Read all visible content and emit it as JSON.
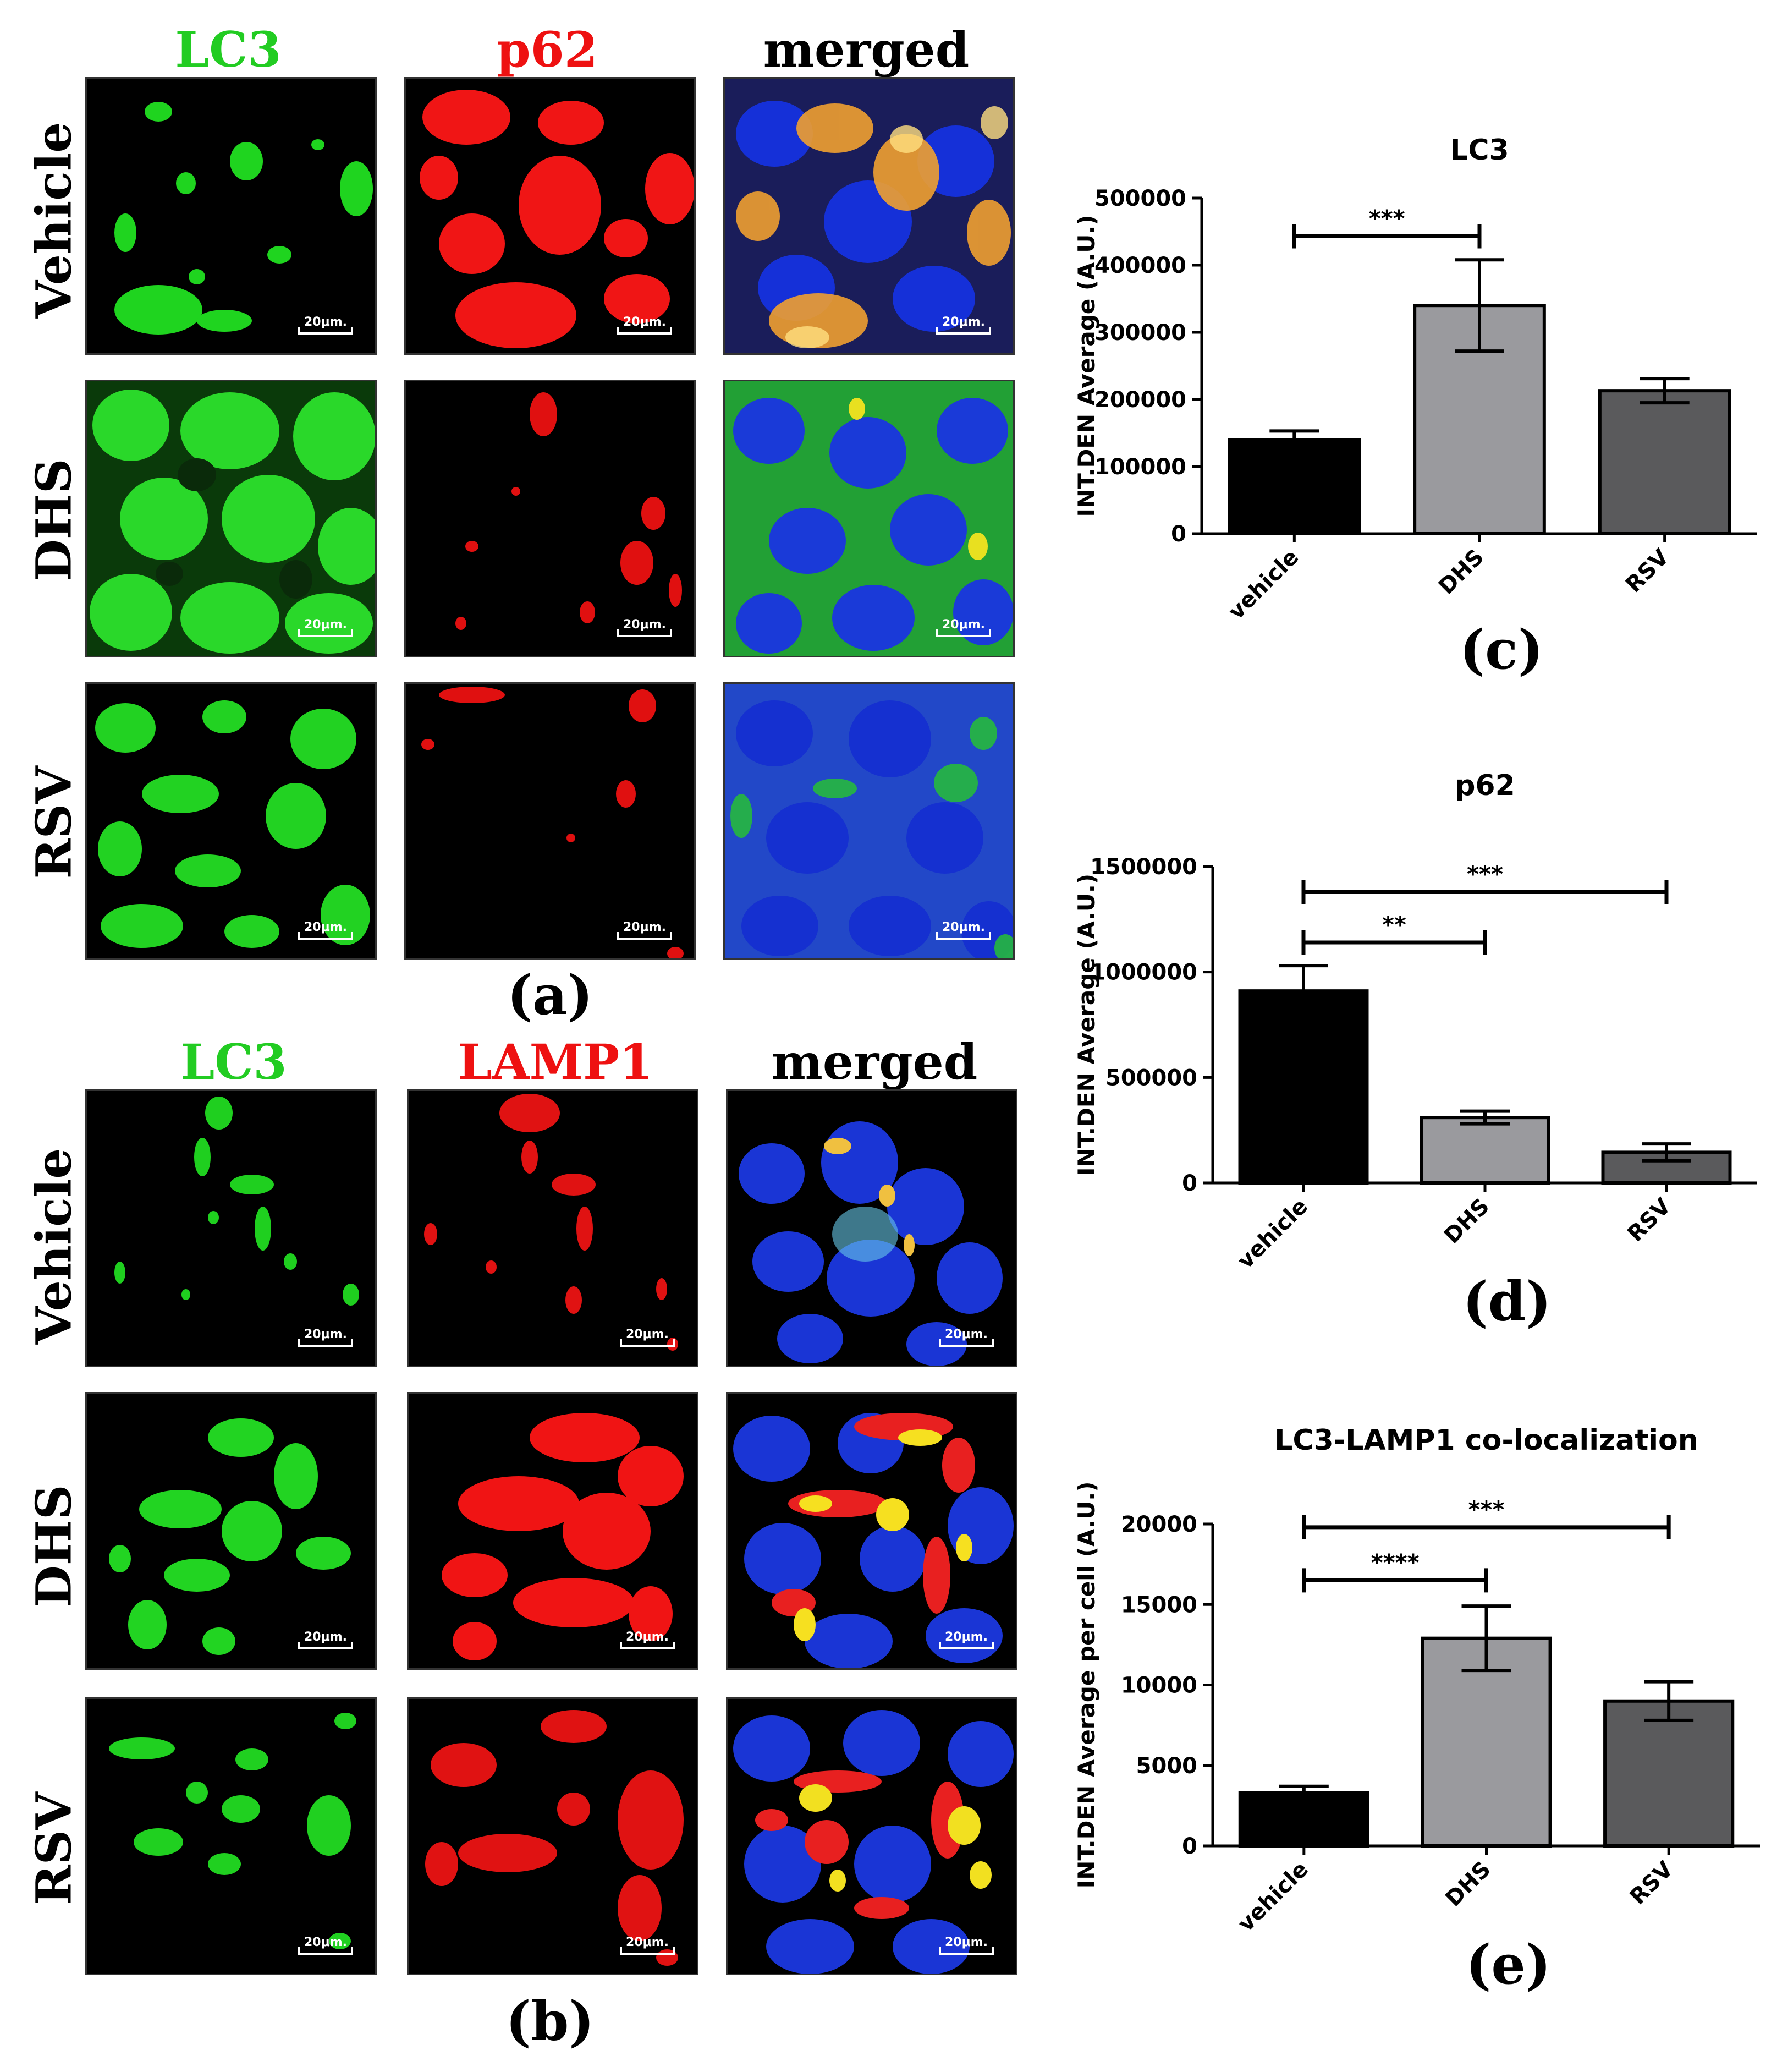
{
  "figure": {
    "panel_a": {
      "letter": "(a)",
      "columns": [
        {
          "label": "LC3",
          "color": "#22cc22"
        },
        {
          "label": "p62",
          "color": "#ee1111"
        },
        {
          "label": "merged",
          "color": "#000000"
        }
      ],
      "rows": [
        "Vehicle",
        "DHS",
        "RSV"
      ],
      "scale_bar": "20μm."
    },
    "panel_b": {
      "letter": "(b)",
      "columns": [
        {
          "label": "LC3",
          "color": "#22cc22"
        },
        {
          "label": "LAMP1",
          "color": "#ee1111"
        },
        {
          "label": "merged",
          "color": "#000000"
        }
      ],
      "rows": [
        "Vehicle",
        "DHS",
        "RSV"
      ],
      "scale_bar": "20μm."
    }
  },
  "chart_data": [
    {
      "id": "c",
      "letter": "(c)",
      "type": "bar",
      "title": "LC3",
      "ylabel": "INT.DEN Average (A.U.)",
      "categories": [
        "vehicle",
        "DHS",
        "RSV"
      ],
      "values": [
        140000,
        340000,
        213000
      ],
      "errors": [
        13000,
        68000,
        18000
      ],
      "bar_colors": [
        "#000000",
        "#9a9a9e",
        "#5a5a5c"
      ],
      "ylim": [
        0,
        500000
      ],
      "yticks": [
        0,
        100000,
        200000,
        300000,
        400000,
        500000
      ],
      "ytick_labels": [
        "0",
        "100000",
        "200000",
        "300000",
        "400000",
        "500000"
      ],
      "significance": [
        {
          "from": 0,
          "to": 1,
          "label": "***",
          "y": 443000
        }
      ]
    },
    {
      "id": "d",
      "letter": "(d)",
      "type": "bar",
      "title": "p62",
      "ylabel": "INT.DEN Average (A.U.)",
      "categories": [
        "vehicle",
        "DHS",
        "RSV"
      ],
      "values": [
        910000,
        310000,
        145000
      ],
      "errors": [
        120000,
        30000,
        40000
      ],
      "bar_colors": [
        "#000000",
        "#9a9a9e",
        "#5a5a5c"
      ],
      "ylim": [
        0,
        1500000
      ],
      "yticks": [
        0,
        500000,
        1000000,
        1500000
      ],
      "ytick_labels": [
        "0",
        "500000",
        "1000000",
        "1500000"
      ],
      "significance": [
        {
          "from": 0,
          "to": 2,
          "label": "***",
          "y": 1380000
        },
        {
          "from": 0,
          "to": 1,
          "label": "**",
          "y": 1140000
        }
      ]
    },
    {
      "id": "e",
      "letter": "(e)",
      "type": "bar",
      "title": "LC3-LAMP1 co-localization",
      "ylabel": "INT.DEN Average per cell (A.U.)",
      "categories": [
        "vehicle",
        "DHS",
        "RSV"
      ],
      "values": [
        3300,
        12900,
        9000
      ],
      "errors": [
        400,
        2000,
        1200
      ],
      "bar_colors": [
        "#000000",
        "#9a9a9e",
        "#5a5a5c"
      ],
      "ylim": [
        0,
        20000
      ],
      "yticks": [
        0,
        5000,
        10000,
        15000,
        20000
      ],
      "ytick_labels": [
        "0",
        "5000",
        "10000",
        "15000",
        "20000"
      ],
      "significance": [
        {
          "from": 0,
          "to": 2,
          "label": "***",
          "y": 19800
        },
        {
          "from": 0,
          "to": 1,
          "label": "****",
          "y": 16500
        }
      ]
    }
  ]
}
